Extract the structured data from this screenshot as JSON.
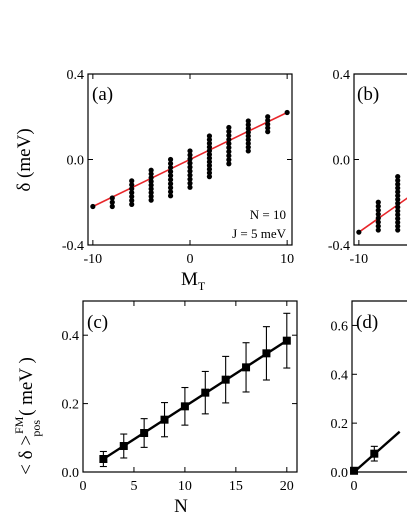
{
  "chart_data": [
    {
      "panel": "(a)",
      "type": "scatter",
      "ylabel": "δ (meV)",
      "xlabel": "M",
      "xlabel_sub": "T",
      "xlim": [
        -10.5,
        10.5
      ],
      "ylim": [
        -0.4,
        0.4
      ],
      "xticks": [
        -10,
        0,
        10
      ],
      "xtick_labels": [
        "-10",
        "0",
        "10"
      ],
      "yticks": [
        -0.4,
        0.0,
        0.4
      ],
      "ytick_labels": [
        "-0.4",
        "0.0",
        "0.4"
      ],
      "annotations": [
        "N = 10",
        "J = 5 meV"
      ],
      "fit_line": {
        "x": [
          -10,
          10
        ],
        "y": [
          -0.22,
          0.22
        ],
        "color": "#e8262a"
      },
      "columns": [
        {
          "x": -10,
          "ymin": -0.22,
          "ymax": -0.22
        },
        {
          "x": -8,
          "ymin": -0.22,
          "ymax": -0.18
        },
        {
          "x": -6,
          "ymin": -0.21,
          "ymax": -0.1
        },
        {
          "x": -4,
          "ymin": -0.19,
          "ymax": -0.05
        },
        {
          "x": -2,
          "ymin": -0.17,
          "ymax": 0.0
        },
        {
          "x": 0,
          "ymin": -0.13,
          "ymax": 0.04
        },
        {
          "x": 2,
          "ymin": -0.08,
          "ymax": 0.11
        },
        {
          "x": 4,
          "ymin": -0.02,
          "ymax": 0.15
        },
        {
          "x": 6,
          "ymin": 0.04,
          "ymax": 0.18
        },
        {
          "x": 8,
          "ymin": 0.13,
          "ymax": 0.2
        },
        {
          "x": 10,
          "ymin": 0.22,
          "ymax": 0.22
        }
      ],
      "marker_color": "#000000"
    },
    {
      "panel": "(b)",
      "type": "scatter",
      "ylim": [
        -0.4,
        0.4
      ],
      "yticks": [
        -0.4,
        0.0,
        0.4
      ],
      "ytick_labels": [
        "-0.4",
        "0.0",
        "0.4"
      ],
      "xticks": [
        -10
      ],
      "xtick_labels": [
        "-10"
      ],
      "fit_line": {
        "x": [
          -10,
          -5
        ],
        "y": [
          -0.34,
          -0.18
        ],
        "color": "#e8262a"
      },
      "columns": [
        {
          "x": -10,
          "ymin": -0.34,
          "ymax": -0.34
        },
        {
          "x": -8,
          "ymin": -0.33,
          "ymax": -0.2
        },
        {
          "x": -6,
          "ymin": -0.33,
          "ymax": -0.08
        }
      ],
      "marker_color": "#000000"
    },
    {
      "panel": "(c)",
      "type": "line",
      "ylabel": "< δ >",
      "ylabel_sup": "FM",
      "ylabel_sub": "pos",
      "ylabel_unit": "( meV )",
      "xlabel": "N",
      "xlim": [
        0,
        21
      ],
      "ylim": [
        0.0,
        0.5
      ],
      "xticks": [
        0,
        5,
        10,
        15,
        20
      ],
      "xtick_labels": [
        "0",
        "5",
        "10",
        "15",
        "20"
      ],
      "yticks": [
        0.0,
        0.2,
        0.4
      ],
      "ytick_labels": [
        "0.0",
        "0.2",
        "0.4"
      ],
      "x": [
        2,
        4,
        6,
        8,
        10,
        12,
        14,
        16,
        18,
        20
      ],
      "y": [
        0.038,
        0.076,
        0.114,
        0.153,
        0.192,
        0.232,
        0.27,
        0.306,
        0.347,
        0.384
      ],
      "err": [
        0.022,
        0.035,
        0.042,
        0.05,
        0.055,
        0.062,
        0.068,
        0.072,
        0.078,
        0.08
      ],
      "fit_line": {
        "x": [
          2,
          20
        ],
        "y": [
          0.038,
          0.384
        ],
        "color": "#000000"
      }
    },
    {
      "panel": "(d)",
      "type": "line",
      "ylim": [
        0.0,
        0.7
      ],
      "yticks": [
        0.0,
        0.2,
        0.4,
        0.6
      ],
      "ytick_labels": [
        "0.0",
        "0.2",
        "0.4",
        "0.6"
      ],
      "xticks": [
        0
      ],
      "xtick_labels": [
        "0"
      ],
      "x": [
        0,
        2
      ],
      "y": [
        0.005,
        0.075
      ],
      "err": [
        0.008,
        0.03
      ],
      "fit_line": {
        "x": [
          0,
          4.5
        ],
        "y": [
          0.0,
          0.165
        ],
        "color": "#000000"
      }
    }
  ]
}
